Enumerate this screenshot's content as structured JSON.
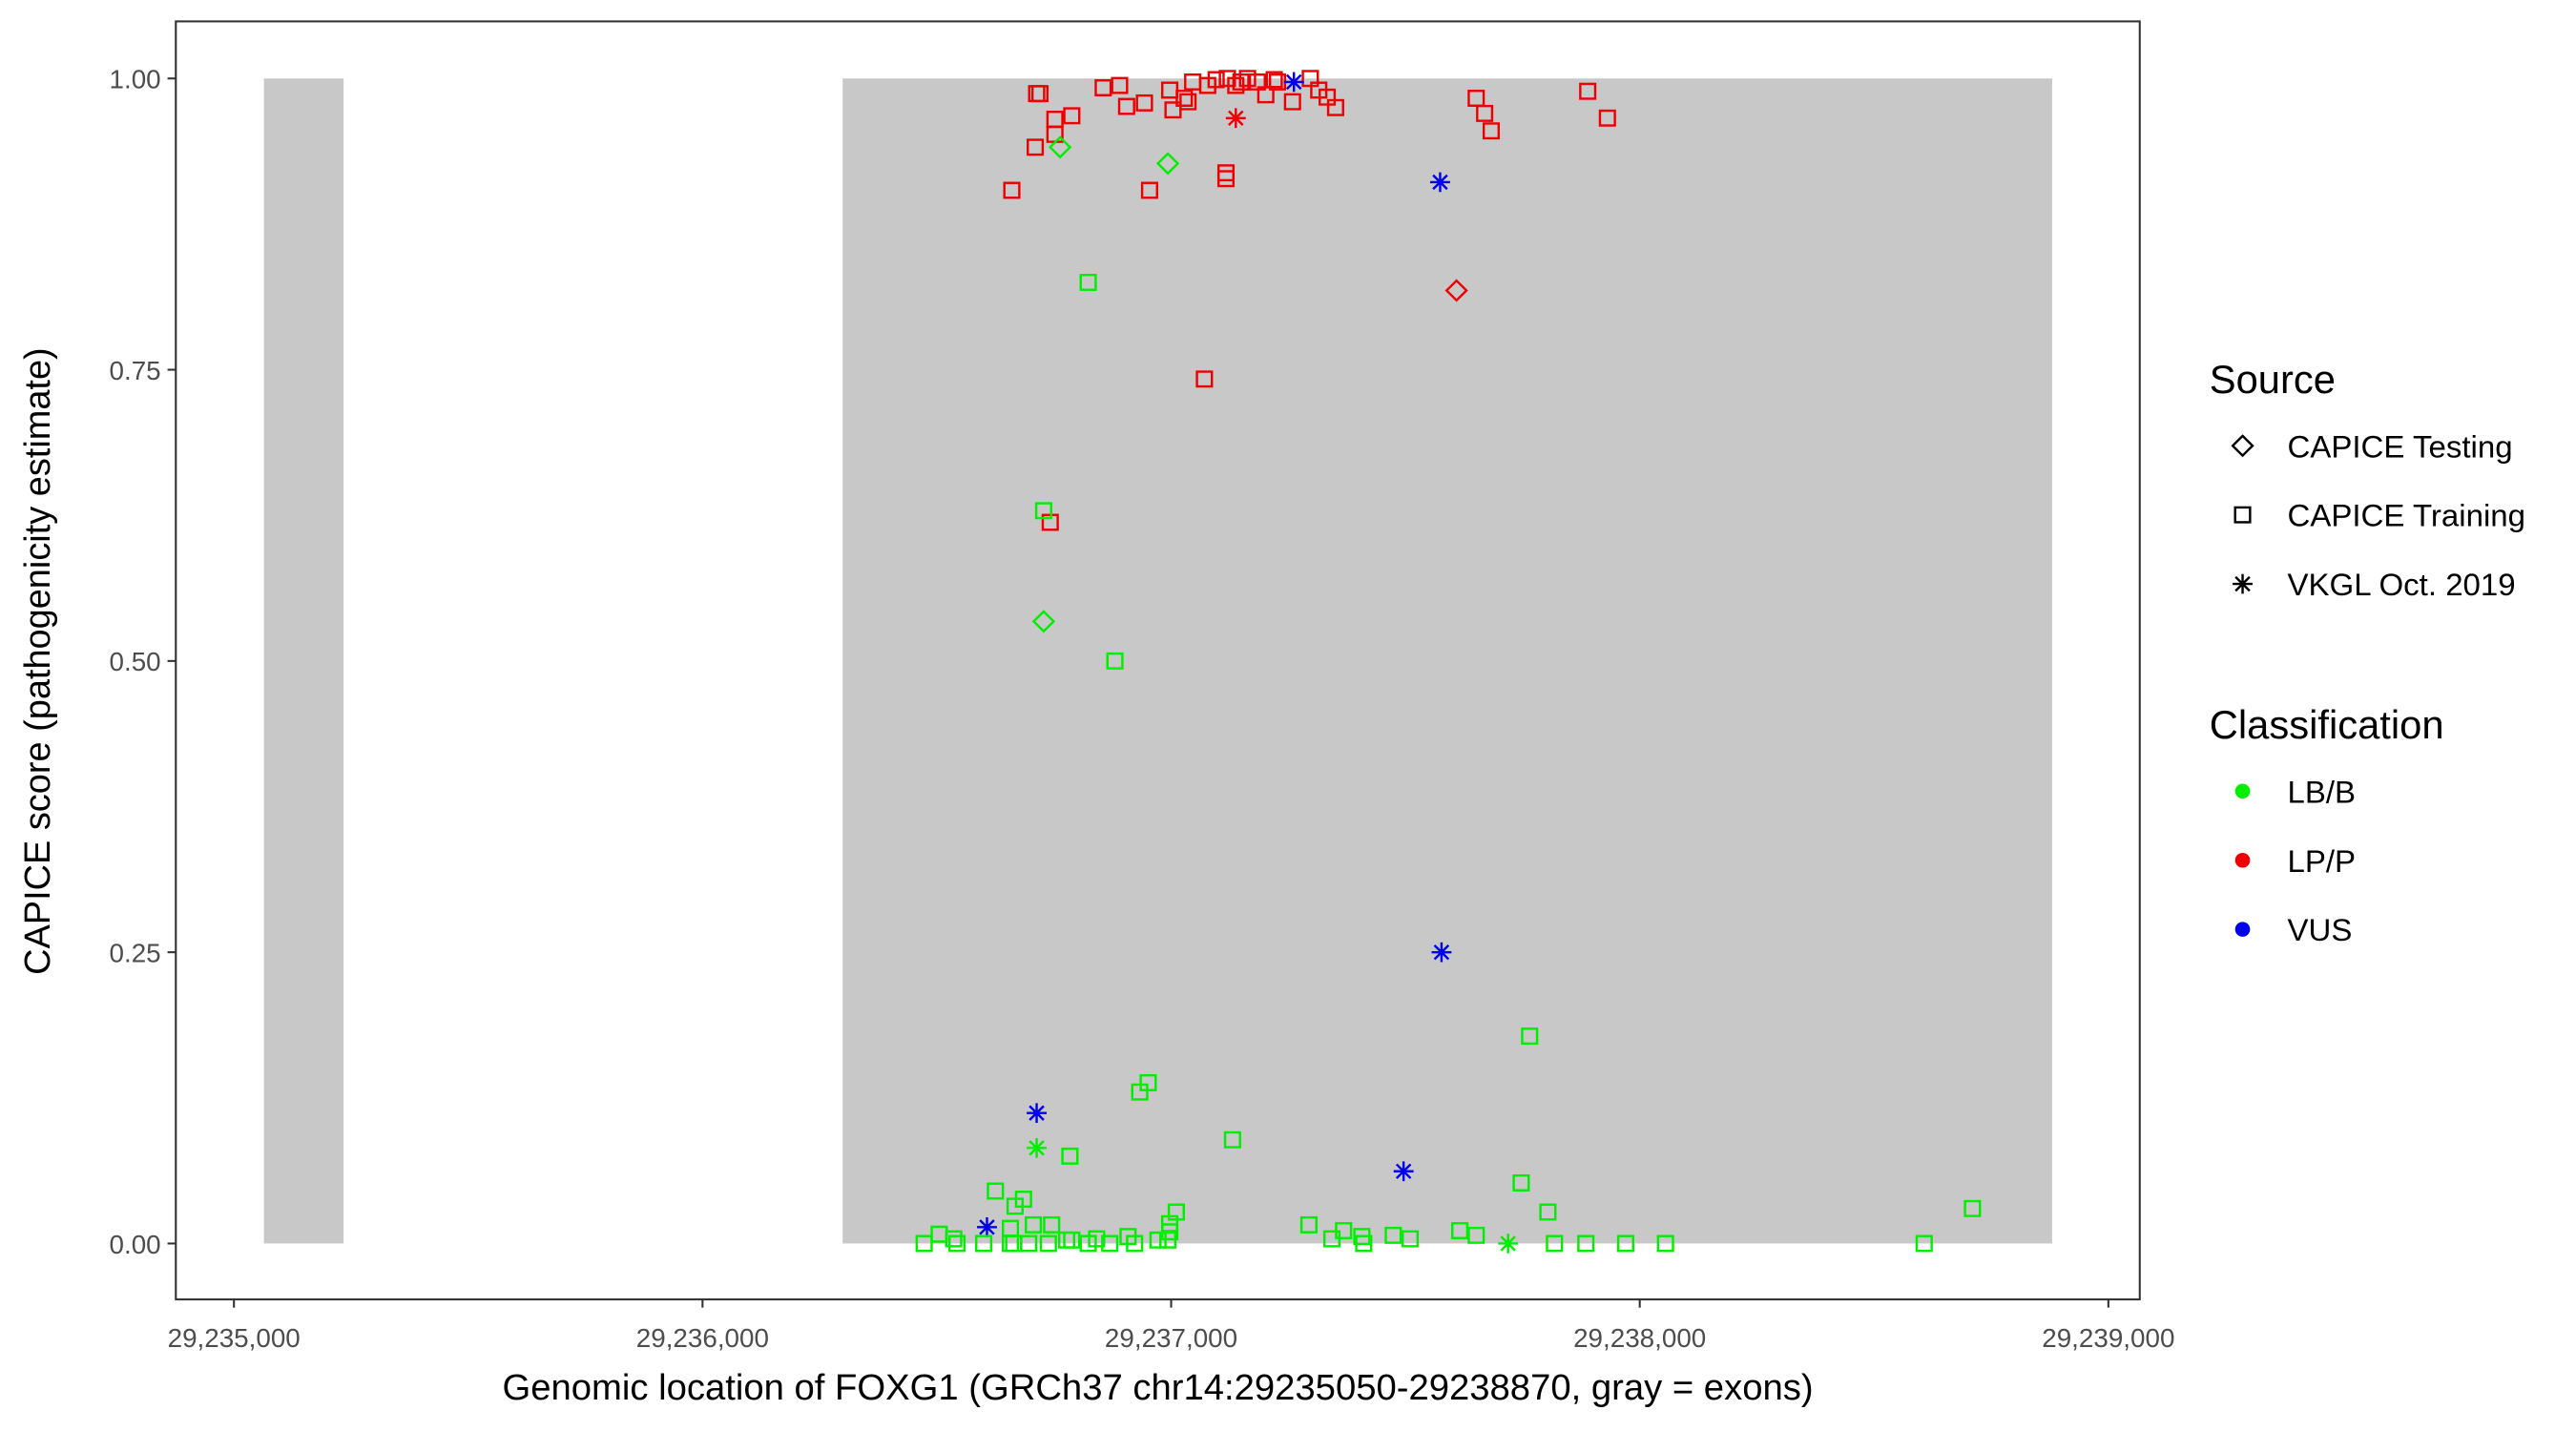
{
  "chart_data": {
    "type": "scatter",
    "x_label": "Genomic location of FOXG1 (GRCh37 chr14:29235050-29238870, gray = exons)",
    "y_label": "CAPICE score (pathogenicity estimate)",
    "xlim": [
      29234876,
      29239067
    ],
    "ylim": [
      -0.048,
      1.049
    ],
    "xticks": [
      {
        "value": 29235000,
        "label": "29,235,000"
      },
      {
        "value": 29236000,
        "label": "29,236,000"
      },
      {
        "value": 29237000,
        "label": "29,237,000"
      },
      {
        "value": 29238000,
        "label": "29,238,000"
      },
      {
        "value": 29239000,
        "label": "29,239,000"
      }
    ],
    "yticks": [
      {
        "value": 0,
        "label": "0.00"
      },
      {
        "value": 0.25,
        "label": "0.25"
      },
      {
        "value": 0.5,
        "label": "0.50"
      },
      {
        "value": 0.75,
        "label": "0.75"
      },
      {
        "value": 1,
        "label": "1.00"
      }
    ],
    "exons": {
      "starts": [
        29235064,
        29236299
      ],
      "ends": [
        29235234,
        29238880
      ],
      "ymin": 0,
      "ymax": 1,
      "color": "#c8c8c8"
    },
    "legend": {
      "source_title": "Source",
      "sources": [
        {
          "name": "CAPICE Testing",
          "shape": "diamond"
        },
        {
          "name": "CAPICE Training",
          "shape": "square"
        },
        {
          "name": "VKGL Oct. 2019",
          "shape": "asterisk"
        }
      ],
      "classification_title": "Classification",
      "classifications": [
        {
          "name": "LB/B",
          "color": "#00ee00"
        },
        {
          "name": "LP/P",
          "color": "#ee0000"
        },
        {
          "name": "VUS",
          "color": "#0000ee"
        }
      ]
    },
    "series": [
      {
        "source": "CAPICE Training",
        "classification": "LP/P",
        "x": [
          29236660,
          29236713,
          29236720,
          29236752,
          29236752,
          29236788,
          29236710,
          29236855,
          29236890,
          29236905,
          29236943,
          29236954,
          29236997,
          29237004,
          29237028,
          29237036,
          29237046,
          29237071,
          29237078,
          29237096,
          29237117,
          29237117,
          29237149,
          29237163,
          29237184,
          29237202,
          29237220,
          29237259,
          29237297,
          29237315,
          29237333,
          29237351,
          29237651,
          29237669,
          29237683,
          29237889,
          29237931,
          29236742,
          29237227,
          29237120,
          29237138
        ],
        "values": [
          0.904,
          0.987,
          0.987,
          0.965,
          0.952,
          0.968,
          0.941,
          0.992,
          0.994,
          0.976,
          0.979,
          0.904,
          0.99,
          0.973,
          0.983,
          0.98,
          0.997,
          0.742,
          0.994,
          0.999,
          0.919,
          0.914,
          0.997,
          1.0,
          0.997,
          0.986,
          0.999,
          0.98,
          1.0,
          0.99,
          0.984,
          0.975,
          0.983,
          0.97,
          0.955,
          0.989,
          0.966,
          0.619,
          0.997,
          1.0,
          0.994
        ]
      },
      {
        "source": "CAPICE Testing",
        "classification": "LP/P",
        "x": [
          29237609
        ],
        "values": [
          0.818
        ]
      },
      {
        "source": "VKGL Oct. 2019",
        "classification": "LP/P",
        "x": [
          29237138
        ],
        "values": [
          0.966
        ]
      },
      {
        "source": "VKGL Oct. 2019",
        "classification": "VUS",
        "x": [
          29237262,
          29237574,
          29237577,
          29236713,
          29237496,
          29236607
        ],
        "values": [
          0.997,
          0.911,
          0.25,
          0.112,
          0.062,
          0.014
        ]
      },
      {
        "source": "CAPICE Testing",
        "classification": "LB/B",
        "x": [
          29236763,
          29236993,
          29236728
        ],
        "values": [
          0.941,
          0.927,
          0.534
        ]
      },
      {
        "source": "VKGL Oct. 2019",
        "classification": "LB/B",
        "x": [
          29236713,
          29237719
        ],
        "values": [
          0.082,
          0.0
        ]
      },
      {
        "source": "CAPICE Training",
        "classification": "LB/B",
        "x": [
          29236823,
          29236728,
          29236880,
          29237765,
          29236951,
          29236933,
          29237131,
          29236784,
          29237747,
          29238710,
          29237804,
          29237011,
          29236625,
          29236685,
          29236667,
          29236997,
          29236997,
          29237294,
          29237368,
          29237616,
          29237651,
          29237474,
          29237343,
          29237407,
          29237510,
          29236505,
          29236473,
          29236543,
          29236600,
          29236657,
          29236664,
          29236706,
          29236745,
          29236696,
          29236738,
          29236777,
          29236823,
          29236841,
          29236869,
          29236908,
          29236922,
          29236972,
          29236993,
          29237818,
          29237885,
          29237970,
          29238055,
          29238607,
          29237411,
          29236536,
          29236788,
          29236657
        ],
        "values": [
          0.825,
          0.629,
          0.5,
          0.178,
          0.138,
          0.13,
          0.089,
          0.075,
          0.052,
          0.03,
          0.027,
          0.027,
          0.045,
          0.038,
          0.032,
          0.017,
          0.01,
          0.016,
          0.011,
          0.011,
          0.007,
          0.007,
          0.004,
          0.006,
          0.004,
          0.008,
          0.0,
          0.0,
          0.0,
          0.013,
          0.0,
          0.016,
          0.016,
          0.0,
          0.0,
          0.003,
          0.0,
          0.004,
          0.0,
          0.006,
          0.0,
          0.003,
          0.003,
          0.0,
          0.0,
          0.0,
          0.0,
          0.0,
          0.0,
          0.004,
          0.003,
          0.0
        ]
      }
    ]
  }
}
